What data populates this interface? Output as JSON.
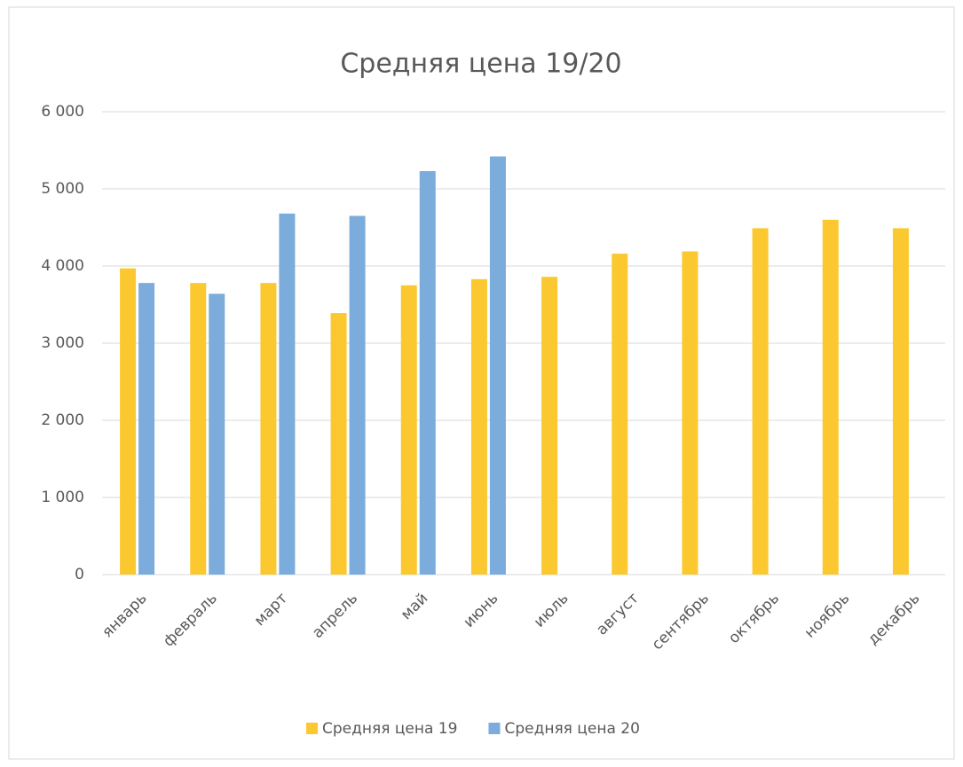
{
  "chart_data": {
    "type": "bar",
    "title": "Средняя цена 19/20",
    "categories": [
      "январь",
      "февраль",
      "март",
      "апрель",
      "май",
      "июнь",
      "июль",
      "август",
      "сентябрь",
      "октябрь",
      "ноябрь",
      "декабрь"
    ],
    "series": [
      {
        "name": "Средняя цена 19",
        "color": "#fbc830",
        "values": [
          3970,
          3780,
          3780,
          3390,
          3750,
          3830,
          3860,
          4160,
          4190,
          4490,
          4600,
          4490
        ]
      },
      {
        "name": "Средняя цена 20",
        "color": "#7cacdc",
        "values": [
          3780,
          3640,
          4680,
          4650,
          5230,
          5420,
          null,
          null,
          null,
          null,
          null,
          null
        ]
      }
    ],
    "ylim": [
      0,
      6000
    ],
    "yticks": [
      0,
      {
        "value": 1000,
        "label": "1 000"
      },
      {
        "value": 2000,
        "label": "2 000"
      },
      {
        "value": 3000,
        "label": "3 000"
      },
      {
        "value": 4000,
        "label": "4 000"
      },
      {
        "value": 5000,
        "label": "5 000"
      },
      {
        "value": 6000,
        "label": "6 000"
      }
    ],
    "grid": true,
    "legend": "bottom"
  }
}
